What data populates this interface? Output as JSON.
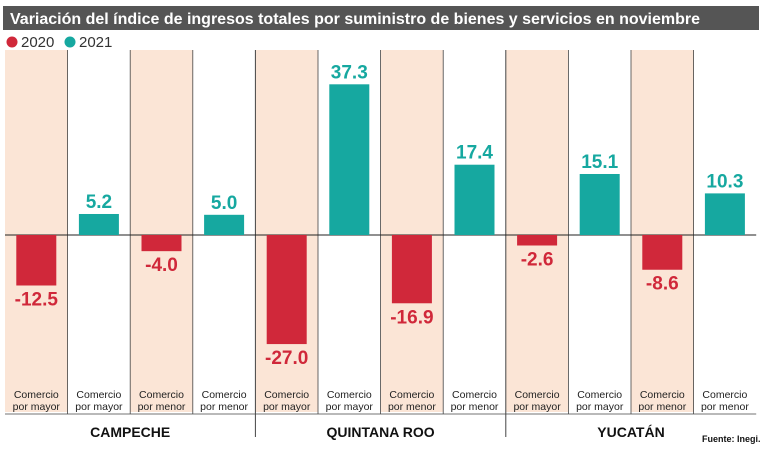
{
  "chart_data": {
    "type": "bar",
    "title": "Variación del índice de ingresos totales por suministro de bienes y servicios en noviembre",
    "legend": [
      "2020",
      "2021"
    ],
    "colors": {
      "2020": "#d0283a",
      "2021": "#16a8a0",
      "band_2020": "#fbe5d6",
      "title_bg": "#555555"
    },
    "groups": [
      {
        "name": "CAMPECHE",
        "bars": [
          {
            "category_lines": [
              "Comercio",
              "por mayor"
            ],
            "year": "2020",
            "value": -12.5,
            "label": "-12.5"
          },
          {
            "category_lines": [
              "Comercio",
              "por mayor"
            ],
            "year": "2021",
            "value": 5.2,
            "label": "5.2"
          },
          {
            "category_lines": [
              "Comercio",
              "por menor"
            ],
            "year": "2020",
            "value": -4.0,
            "label": "-4.0"
          },
          {
            "category_lines": [
              "Comercio",
              "por menor"
            ],
            "year": "2021",
            "value": 5.0,
            "label": "5.0"
          }
        ]
      },
      {
        "name": "QUINTANA ROO",
        "bars": [
          {
            "category_lines": [
              "Comercio",
              "por mayor"
            ],
            "year": "2020",
            "value": -27.0,
            "label": "-27.0"
          },
          {
            "category_lines": [
              "Comercio",
              "por mayor"
            ],
            "year": "2021",
            "value": 37.3,
            "label": "37.3"
          },
          {
            "category_lines": [
              "Comercio",
              "por menor"
            ],
            "year": "2020",
            "value": -16.9,
            "label": "-16.9"
          },
          {
            "category_lines": [
              "Comercio",
              "por menor"
            ],
            "year": "2021",
            "value": 17.4,
            "label": "17.4"
          }
        ]
      },
      {
        "name": "YUCATÁN",
        "bars": [
          {
            "category_lines": [
              "Comercio",
              "por mayor"
            ],
            "year": "2020",
            "value": -2.6,
            "label": "-2.6"
          },
          {
            "category_lines": [
              "Comercio",
              "por mayor"
            ],
            "year": "2021",
            "value": 15.1,
            "label": "15.1"
          },
          {
            "category_lines": [
              "Comercio",
              "por menor"
            ],
            "year": "2020",
            "value": -8.6,
            "label": "-8.6"
          },
          {
            "category_lines": [
              "Comercio",
              "por menor"
            ],
            "year": "2021",
            "value": 10.3,
            "label": "10.3"
          }
        ]
      }
    ],
    "ylim": [
      -27,
      37.3
    ],
    "source": "Fuente: Inegi."
  }
}
